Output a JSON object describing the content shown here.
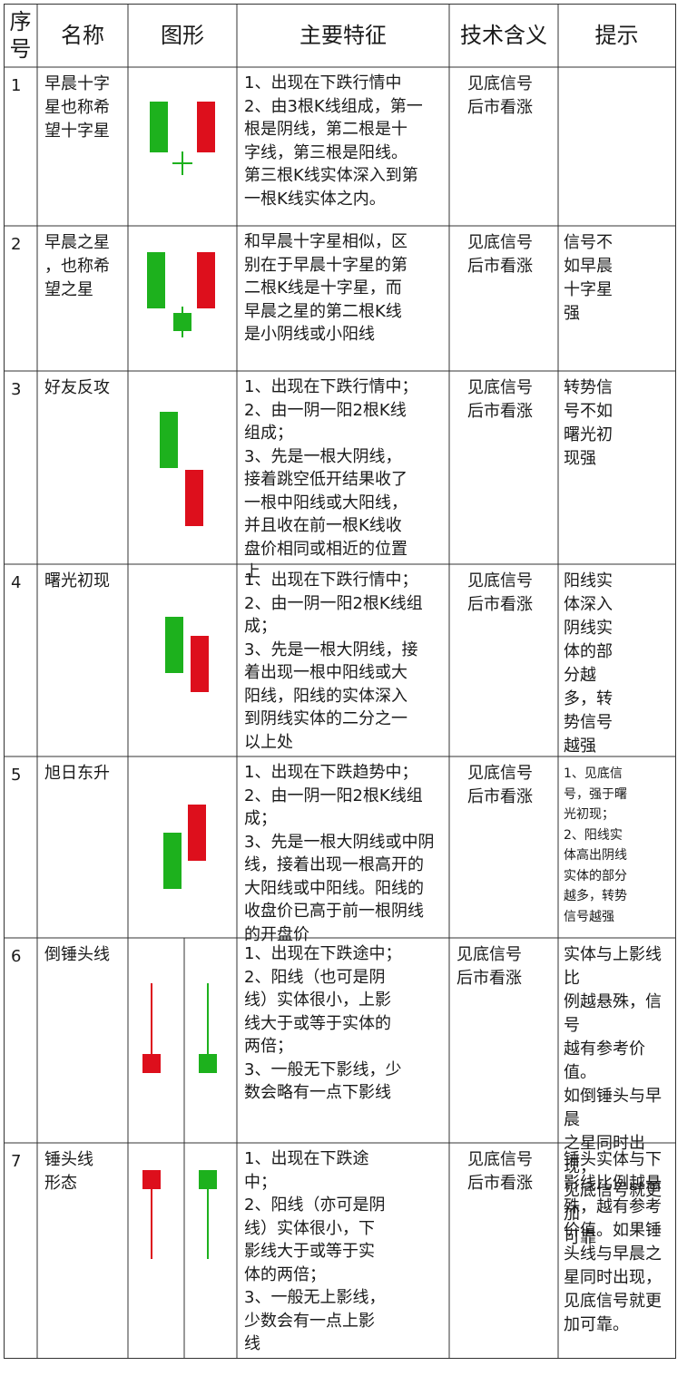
{
  "colors": {
    "bear": "#1db11d",
    "bull": "#dd0f1c",
    "border": "#333333"
  },
  "headers": {
    "index": "序\n号",
    "name": "名称",
    "shape": "图形",
    "features": "主要特征",
    "meaning": "技术含义",
    "tips": "提示"
  },
  "rows": [
    {
      "index": "1",
      "name": "早晨十字\n星也称希\n望十字星",
      "features": "1、出现在下跌行情中\n2、由3根K线组成，第一\n根是阴线，第二根是十\n字线，第三根是阳线。\n第三根K线实体深入到第\n一根K线实体之内。",
      "meaning": "见底信号\n后市看涨",
      "tips": ""
    },
    {
      "index": "2",
      "name": "早晨之星\n，也称希\n望之星",
      "features": "和早晨十字星相似，区\n别在于早晨十字星的第\n二根K线是十字星，而\n早晨之星的第二根K线\n是小阴线或小阳线",
      "meaning": "见底信号\n后市看涨",
      "tips": "信号不\n如早晨\n十字星\n强"
    },
    {
      "index": "3",
      "name": "好友反攻",
      "features": "1、出现在下跌行情中；\n2、由一阴一阳2根K线\n组成；\n3、先是一根大阴线，\n接着跳空低开结果收了\n一根中阳线或大阳线，\n并且收在前一根K线收\n盘价相同或相近的位置\n上",
      "meaning": "见底信号\n后市看涨",
      "tips": "转势信\n号不如\n曙光初\n现强"
    },
    {
      "index": "4",
      "name": "曙光初现",
      "features": "1、出现在下跌行情中；\n2、由一阴一阳2根K线组\n成；\n3、先是一根大阴线，接\n着出现一根中阳线或大\n阳线，阳线的实体深入\n到阴线实体的二分之一\n以上处",
      "meaning": "见底信号\n后市看涨",
      "tips": "阳线实\n体深入\n阴线实\n体的部\n分越\n多，转\n势信号\n越强"
    },
    {
      "index": "5",
      "name": "旭日东升",
      "features": "1、出现在下跌趋势中；\n2、由一阴一阳2根K线组\n成；\n3、先是一根大阴线或中阴\n线，接着出现一根高开的\n大阳线或中阳线。阳线的\n收盘价已高于前一根阴线\n的开盘价",
      "meaning": "见底信号\n后市看涨",
      "tips": "1、见底信\n号，强于曙\n光初现；\n2、阳线实\n体高出阴线\n实体的部分\n越多，转势\n信号越强"
    },
    {
      "index": "6",
      "name": "倒锤头线",
      "features": "1、出现在下跌途中；\n2、阳线（也可是阴\n线）实体很小，上影\n线大于或等于实体的\n两倍；\n3、一般无下影线，少\n数会略有一点下影线",
      "meaning": "见底信号\n后市看涨",
      "tips": "实体与上影线比\n例越悬殊，信号\n越有参考价值。\n如倒锤头与早晨\n之星同时出现，\n见底信号就更加\n可靠"
    },
    {
      "index": "7",
      "name": "锤头线\n形态",
      "features": "1、出现在下跌途\n中；\n2、阳线（亦可是阴\n线）实体很小，下\n影线大于或等于实\n体的两倍；\n3、一般无上影线，\n少数会有一点上影\n线",
      "meaning": "见底信号\n后市看涨",
      "tips": "锤头实体与下\n影线比例越悬\n殊，越有参考\n价值。如果锤\n头线与早晨之\n星同时出现，\n见底信号就更\n加可靠。"
    }
  ]
}
